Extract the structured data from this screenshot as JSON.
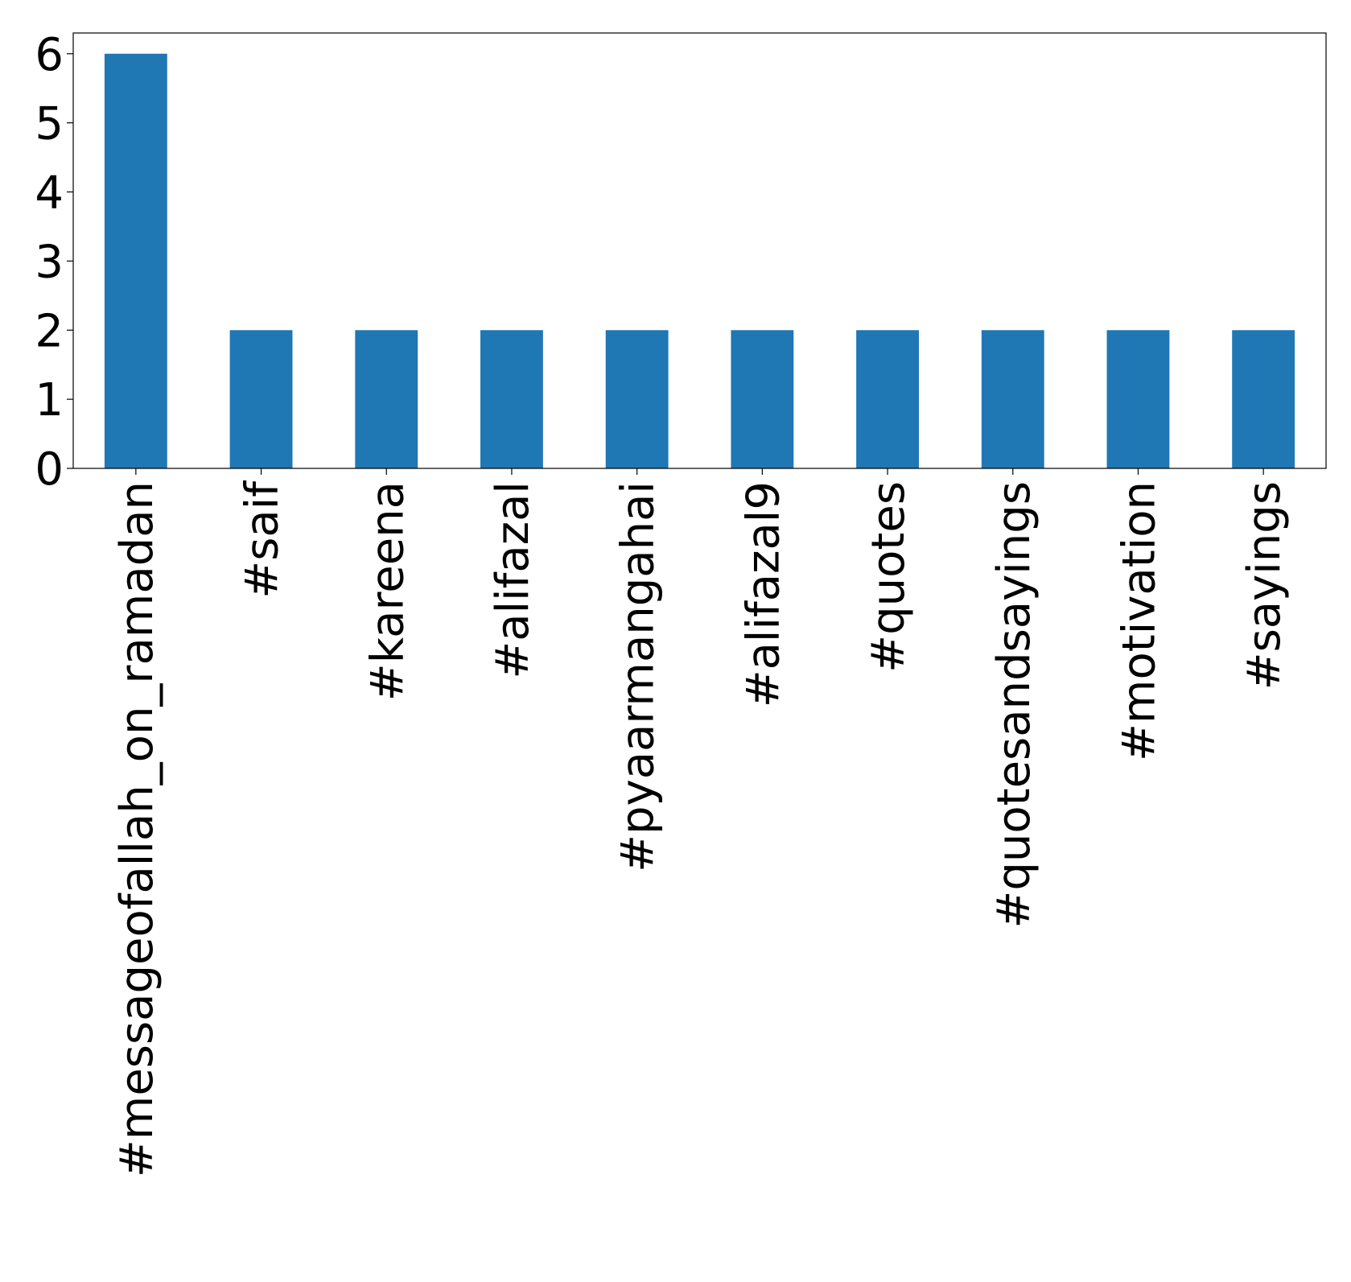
{
  "chart_data": {
    "type": "bar",
    "categories": [
      "#messageofallah_on_ramadan",
      "#saif",
      "#kareena",
      "#alifazal",
      "#pyaarmangahai",
      "#alifazal9",
      "#quotes",
      "#quotesandsayings",
      "#motivation",
      "#sayings"
    ],
    "values": [
      6,
      2,
      2,
      2,
      2,
      2,
      2,
      2,
      2,
      2
    ],
    "color": "#1f77b4",
    "ylim": [
      0,
      6.3
    ],
    "yticks": [
      0,
      1,
      2,
      3,
      4,
      5,
      6
    ],
    "grid": false
  }
}
